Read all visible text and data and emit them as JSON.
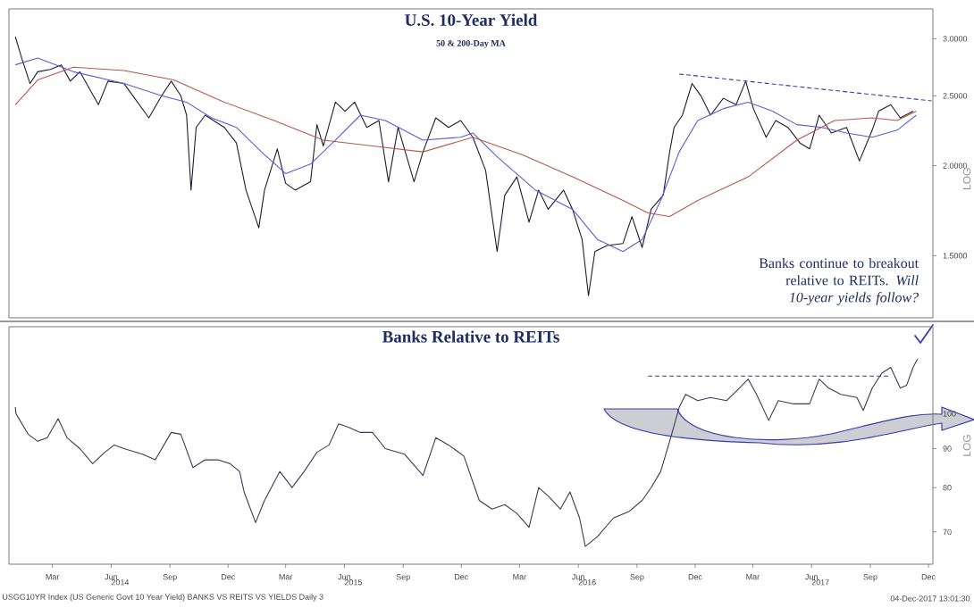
{
  "chart_data": [
    {
      "type": "line",
      "title": "U.S. 10-Year Yield",
      "subtitle": "50 & 200-Day MA",
      "ylabel": "LOG",
      "log": true,
      "marker": "none",
      "tick_labels": "y",
      "xlim": [
        "2013-12-23",
        "2017-12-08"
      ],
      "ylim": [
        1.23,
        3.3
      ],
      "yticks": [
        {
          "value": 1.5,
          "label": "1.5000"
        },
        {
          "value": 2,
          "label": "2.0000"
        },
        {
          "value": 2.5,
          "label": "2.5000"
        },
        {
          "value": 3,
          "label": "3.0000"
        }
      ],
      "series": [
        {
          "color": "#1c1c30",
          "x": [
            "2014-01-02",
            "2014-01-12",
            "2014-01-25",
            "2014-02-06",
            "2014-02-26",
            "2014-03-15",
            "2014-03-29",
            "2014-04-13",
            "2014-05-12",
            "2014-05-27",
            "2014-06-21",
            "2014-07-05",
            "2014-07-30",
            "2014-08-19",
            "2014-09-03",
            "2014-09-18",
            "2014-09-27",
            "2014-10-04",
            "2014-10-12",
            "2014-10-26",
            "2014-11-25",
            "2014-12-14",
            "2014-12-29",
            "2015-01-18",
            "2015-01-27",
            "2015-02-16",
            "2015-03-01",
            "2015-03-16",
            "2015-04-09",
            "2015-04-19",
            "2015-04-29",
            "2015-05-18",
            "2015-06-02",
            "2015-06-17",
            "2015-07-06",
            "2015-07-25",
            "2015-08-09",
            "2015-08-24",
            "2015-09-18",
            "2015-10-02",
            "2015-10-22",
            "2015-11-11",
            "2015-11-30",
            "2015-12-19",
            "2016-01-08",
            "2016-01-26",
            "2016-02-07",
            "2016-02-26",
            "2016-03-16",
            "2016-03-31",
            "2016-04-15",
            "2016-05-09",
            "2016-05-23",
            "2016-06-07",
            "2016-06-17",
            "2016-06-27",
            "2016-07-16",
            "2016-08-10",
            "2016-08-24",
            "2016-09-09",
            "2016-09-23",
            "2016-10-12",
            "2016-10-22",
            "2016-10-29",
            "2016-11-11",
            "2016-11-26",
            "2016-12-10",
            "2016-12-25",
            "2017-01-14",
            "2017-02-03",
            "2017-02-18",
            "2017-03-02",
            "2017-03-22",
            "2017-04-06",
            "2017-04-25",
            "2017-05-14",
            "2017-05-29",
            "2017-06-13",
            "2017-07-02",
            "2017-07-26",
            "2017-08-15",
            "2017-09-04",
            "2017-09-14",
            "2017-10-03",
            "2017-10-18",
            "2017-11-07"
          ],
          "values": [
            3.02,
            2.82,
            2.6,
            2.7,
            2.72,
            2.76,
            2.62,
            2.7,
            2.43,
            2.62,
            2.6,
            2.5,
            2.33,
            2.5,
            2.62,
            2.5,
            2.35,
            1.85,
            2.26,
            2.35,
            2.26,
            2.15,
            1.85,
            1.64,
            1.85,
            2.11,
            1.89,
            1.85,
            1.9,
            2.28,
            2.13,
            2.45,
            2.38,
            2.45,
            2.26,
            2.31,
            1.9,
            2.26,
            1.9,
            2.09,
            2.33,
            2.26,
            2.31,
            2.19,
            1.97,
            1.52,
            1.82,
            1.93,
            1.67,
            1.85,
            1.74,
            1.85,
            1.74,
            1.58,
            1.32,
            1.52,
            1.55,
            1.56,
            1.7,
            1.54,
            1.74,
            1.82,
            2.09,
            2.26,
            2.35,
            2.6,
            2.5,
            2.35,
            2.48,
            2.43,
            2.62,
            2.4,
            2.19,
            2.31,
            2.26,
            2.15,
            2.11,
            2.35,
            2.22,
            2.26,
            2.03,
            2.24,
            2.38,
            2.43,
            2.33,
            2.38
          ]
        },
        {
          "color": "#5c5cd6",
          "x": [
            "2014-01-02",
            "2014-02-06",
            "2014-04-03",
            "2014-06-21",
            "2014-08-19",
            "2014-09-27",
            "2014-11-05",
            "2014-12-14",
            "2015-01-22",
            "2015-03-01",
            "2015-04-09",
            "2015-05-18",
            "2015-06-26",
            "2015-08-04",
            "2015-10-02",
            "2015-11-30",
            "2015-12-19",
            "2016-01-28",
            "2016-03-26",
            "2016-05-23",
            "2016-07-01",
            "2016-08-10",
            "2016-09-09",
            "2016-10-08",
            "2016-11-06",
            "2016-12-05",
            "2017-01-14",
            "2017-02-22",
            "2017-04-01",
            "2017-05-09",
            "2017-06-17",
            "2017-07-26",
            "2017-09-04",
            "2017-10-13",
            "2017-11-12"
          ],
          "values": [
            2.76,
            2.82,
            2.7,
            2.6,
            2.5,
            2.45,
            2.33,
            2.26,
            2.09,
            1.95,
            2.01,
            2.17,
            2.35,
            2.31,
            2.17,
            2.19,
            2.22,
            2.05,
            1.85,
            1.74,
            1.58,
            1.52,
            1.58,
            1.79,
            2.09,
            2.31,
            2.4,
            2.45,
            2.38,
            2.28,
            2.26,
            2.22,
            2.19,
            2.24,
            2.35
          ]
        },
        {
          "color": "#b8574c",
          "x": [
            "2014-01-02",
            "2014-02-06",
            "2014-04-03",
            "2014-06-21",
            "2014-09-07",
            "2014-11-25",
            "2015-02-11",
            "2015-04-29",
            "2015-07-15",
            "2015-10-02",
            "2015-12-19",
            "2016-03-06",
            "2016-05-23",
            "2016-08-10",
            "2016-09-18",
            "2016-10-22",
            "2016-12-05",
            "2017-02-22",
            "2017-05-09",
            "2017-07-07",
            "2017-09-04",
            "2017-10-13",
            "2017-11-12"
          ],
          "values": [
            2.43,
            2.63,
            2.74,
            2.71,
            2.63,
            2.45,
            2.31,
            2.17,
            2.13,
            2.09,
            2.19,
            2.07,
            1.93,
            1.79,
            1.72,
            1.7,
            1.79,
            1.93,
            2.17,
            2.31,
            2.33,
            2.31,
            2.38
          ]
        },
        {
          "color": "#3a3ab4",
          "line_style": "dashed",
          "x": [
            "2016-11-06",
            "2017-12-06"
          ],
          "values": [
            2.68,
            2.46
          ]
        }
      ],
      "annotations": [
        "Banks continue to breakout relative to REITs. *Will 10-year yields follow?*"
      ]
    },
    {
      "type": "line",
      "title": "Banks Relative to REITs",
      "ylabel": "LOG",
      "log": true,
      "marker": "none",
      "xlim": [
        "2013-12-23",
        "2017-12-08"
      ],
      "ylim": [
        63.5,
        130
      ],
      "yticks": [
        70,
        80,
        90,
        100
      ],
      "xticks": [
        {
          "value": "2014-03-01",
          "label": "Mar"
        },
        {
          "value": "2014-06-01",
          "label": "Jun"
        },
        {
          "value": "2014-09-01",
          "label": "Sep"
        },
        {
          "value": "2014-12-01",
          "label": "Dec"
        },
        {
          "value": "2015-03-01",
          "label": "Mar"
        },
        {
          "value": "2015-06-01",
          "label": "Jun"
        },
        {
          "value": "2015-09-01",
          "label": "Sep"
        },
        {
          "value": "2015-12-01",
          "label": "Dec"
        },
        {
          "value": "2016-03-01",
          "label": "Mar"
        },
        {
          "value": "2016-06-01",
          "label": "Jun"
        },
        {
          "value": "2016-09-01",
          "label": "Sep"
        },
        {
          "value": "2016-12-01",
          "label": "Dec"
        },
        {
          "value": "2017-03-01",
          "label": "Mar"
        },
        {
          "value": "2017-06-01",
          "label": "Jun"
        },
        {
          "value": "2017-09-01",
          "label": "Sep"
        },
        {
          "value": "2017-12-01",
          "label": "Dec"
        },
        {
          "value": "2014-06-15",
          "label": "2014"
        },
        {
          "value": "2015-06-15",
          "label": "2015"
        },
        {
          "value": "2016-06-15",
          "label": "2016"
        },
        {
          "value": "2017-06-15",
          "label": "2017"
        }
      ],
      "series": [
        {
          "color": "#3a3a5a",
          "x": [
            "2014-01-02",
            "2014-01-03",
            "2014-01-22",
            "2014-02-06",
            "2014-02-21",
            "2014-03-10",
            "2014-03-24",
            "2014-04-13",
            "2014-05-03",
            "2014-05-22",
            "2014-06-06",
            "2014-06-21",
            "2014-07-20",
            "2014-08-09",
            "2014-09-03",
            "2014-09-18",
            "2014-10-07",
            "2014-10-26",
            "2014-11-15",
            "2014-12-04",
            "2014-12-19",
            "2014-12-26",
            "2015-01-13",
            "2015-01-27",
            "2015-02-20",
            "2015-03-11",
            "2015-03-30",
            "2015-04-19",
            "2015-05-08",
            "2015-05-23",
            "2015-06-07",
            "2015-06-26",
            "2015-07-15",
            "2015-08-04",
            "2015-09-03",
            "2015-10-02",
            "2015-10-22",
            "2015-11-11",
            "2015-12-05",
            "2015-12-29",
            "2016-01-18",
            "2016-02-07",
            "2016-02-26",
            "2016-03-16",
            "2016-03-31",
            "2016-04-15",
            "2016-05-04",
            "2016-05-19",
            "2016-06-03",
            "2016-06-12",
            "2016-07-01",
            "2016-07-26",
            "2016-08-20",
            "2016-09-09",
            "2016-09-23",
            "2016-10-08",
            "2016-10-22",
            "2016-11-06",
            "2016-11-16",
            "2016-12-05",
            "2016-12-25",
            "2017-01-19",
            "2017-02-08",
            "2017-02-22",
            "2017-03-07",
            "2017-03-26",
            "2017-04-10",
            "2017-05-04",
            "2017-05-29",
            "2017-06-13",
            "2017-06-28",
            "2017-07-17",
            "2017-08-11",
            "2017-08-21",
            "2017-09-04",
            "2017-09-19",
            "2017-10-03",
            "2017-10-18",
            "2017-10-28",
            "2017-11-07",
            "2017-11-14"
          ],
          "values": [
            102,
            100,
            94,
            92,
            93,
            98.5,
            93,
            90,
            86,
            89,
            91,
            90,
            88.5,
            87,
            94.5,
            94,
            85,
            87,
            87,
            86,
            84,
            79,
            72,
            77,
            84,
            80,
            84,
            89,
            91,
            97,
            96,
            94.5,
            94.5,
            90,
            88.5,
            83,
            93,
            91,
            88,
            77,
            75,
            76,
            74,
            71,
            80,
            78,
            75,
            79,
            73,
            67,
            69,
            73,
            74.5,
            77,
            80,
            84,
            92,
            102,
            106,
            104,
            105,
            104,
            108,
            111,
            106,
            98,
            104,
            103,
            103,
            111,
            108,
            106,
            105,
            101,
            108,
            113,
            115,
            108,
            109,
            115,
            118
          ]
        },
        {
          "color": "#3a3ab4",
          "line_style": "dashed",
          "x": [
            "2016-09-18",
            "2017-10-03"
          ],
          "values": [
            112,
            112
          ]
        }
      ],
      "annotations": [
        "USGG10YR Index (US Generic Govt 10 Year Yield) BANKS VS REITS VS YIELDS  Daily 3",
        "04-Dec-2017 13:01:30"
      ]
    }
  ]
}
